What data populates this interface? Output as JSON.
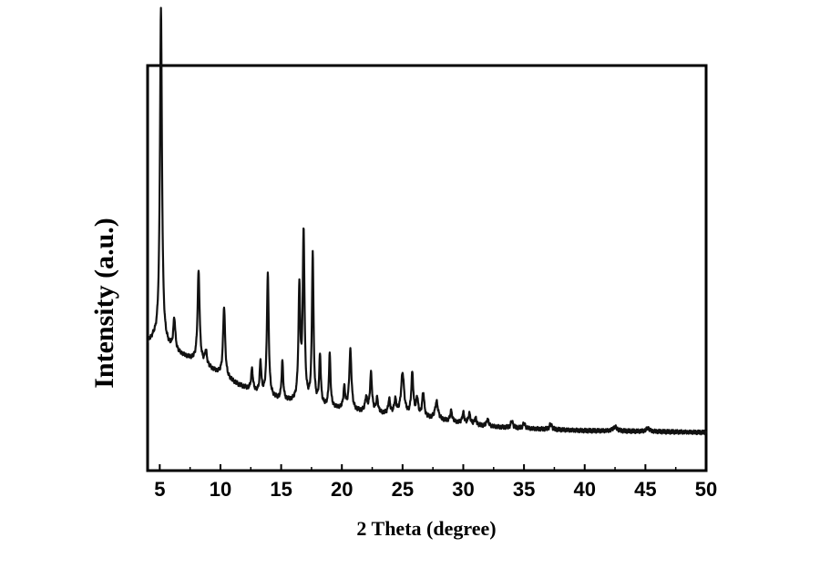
{
  "chart_data": {
    "type": "line",
    "title": "",
    "xlabel": "2 Theta (degree)",
    "ylabel": "Intensity (a.u.)",
    "xlim": [
      4,
      50
    ],
    "ylim": [
      0,
      100
    ],
    "x_ticks": [
      5,
      10,
      15,
      20,
      25,
      30,
      35,
      40,
      45,
      50
    ],
    "x_tick_labels": [
      "5",
      "10",
      "15",
      "20",
      "25",
      "30",
      "35",
      "40",
      "45",
      "50"
    ],
    "y_ticks_shown": false,
    "grid": false,
    "legend": "none",
    "line_color": "#111111",
    "series": [
      {
        "baseline": [
          [
            4.0,
            26
          ],
          [
            4.5,
            27
          ],
          [
            5.5,
            25
          ],
          [
            6.5,
            23
          ],
          [
            7.5,
            21.5
          ],
          [
            8.5,
            20
          ],
          [
            9.5,
            18
          ],
          [
            10.5,
            16
          ],
          [
            11.5,
            14
          ],
          [
            12.5,
            12.5
          ],
          [
            13.5,
            11
          ],
          [
            15,
            9.5
          ],
          [
            17,
            8.5
          ],
          [
            19,
            7.5
          ],
          [
            21,
            6.5
          ],
          [
            23,
            5.8
          ],
          [
            25,
            5.2
          ],
          [
            27,
            4.5
          ],
          [
            29,
            3.5
          ],
          [
            31,
            2.5
          ],
          [
            33,
            2.0
          ],
          [
            36,
            1.5
          ],
          [
            40,
            1.0
          ],
          [
            45,
            0.8
          ],
          [
            50,
            0.5
          ]
        ],
        "peaks": [
          [
            5.1,
            96,
            0.1
          ],
          [
            6.2,
            9,
            0.1
          ],
          [
            8.2,
            26,
            0.1
          ],
          [
            8.8,
            4,
            0.1
          ],
          [
            10.3,
            20,
            0.1
          ],
          [
            12.6,
            6,
            0.09
          ],
          [
            13.3,
            9,
            0.08
          ],
          [
            13.9,
            35,
            0.09
          ],
          [
            15.1,
            11,
            0.08
          ],
          [
            16.5,
            32,
            0.09
          ],
          [
            16.85,
            48,
            0.09
          ],
          [
            17.6,
            43,
            0.08
          ],
          [
            18.2,
            14,
            0.08
          ],
          [
            19.0,
            15,
            0.08
          ],
          [
            20.2,
            6,
            0.09
          ],
          [
            20.7,
            17,
            0.11
          ],
          [
            22.0,
            4,
            0.1
          ],
          [
            22.4,
            11,
            0.1
          ],
          [
            22.9,
            4,
            0.1
          ],
          [
            23.9,
            4,
            0.1
          ],
          [
            24.4,
            4,
            0.1
          ],
          [
            25.0,
            12,
            0.15
          ],
          [
            25.8,
            12,
            0.1
          ],
          [
            26.2,
            5,
            0.1
          ],
          [
            26.7,
            7,
            0.1
          ],
          [
            27.8,
            5,
            0.15
          ],
          [
            29.0,
            3,
            0.1
          ],
          [
            30.0,
            3,
            0.1
          ],
          [
            30.5,
            3,
            0.1
          ],
          [
            31.0,
            2,
            0.1
          ],
          [
            32.0,
            2,
            0.1
          ],
          [
            34.0,
            2,
            0.1
          ],
          [
            35.0,
            1.5,
            0.1
          ],
          [
            37.2,
            1.5,
            0.12
          ],
          [
            42.5,
            1.2,
            0.2
          ],
          [
            45.2,
            1.0,
            0.15
          ]
        ]
      }
    ]
  }
}
